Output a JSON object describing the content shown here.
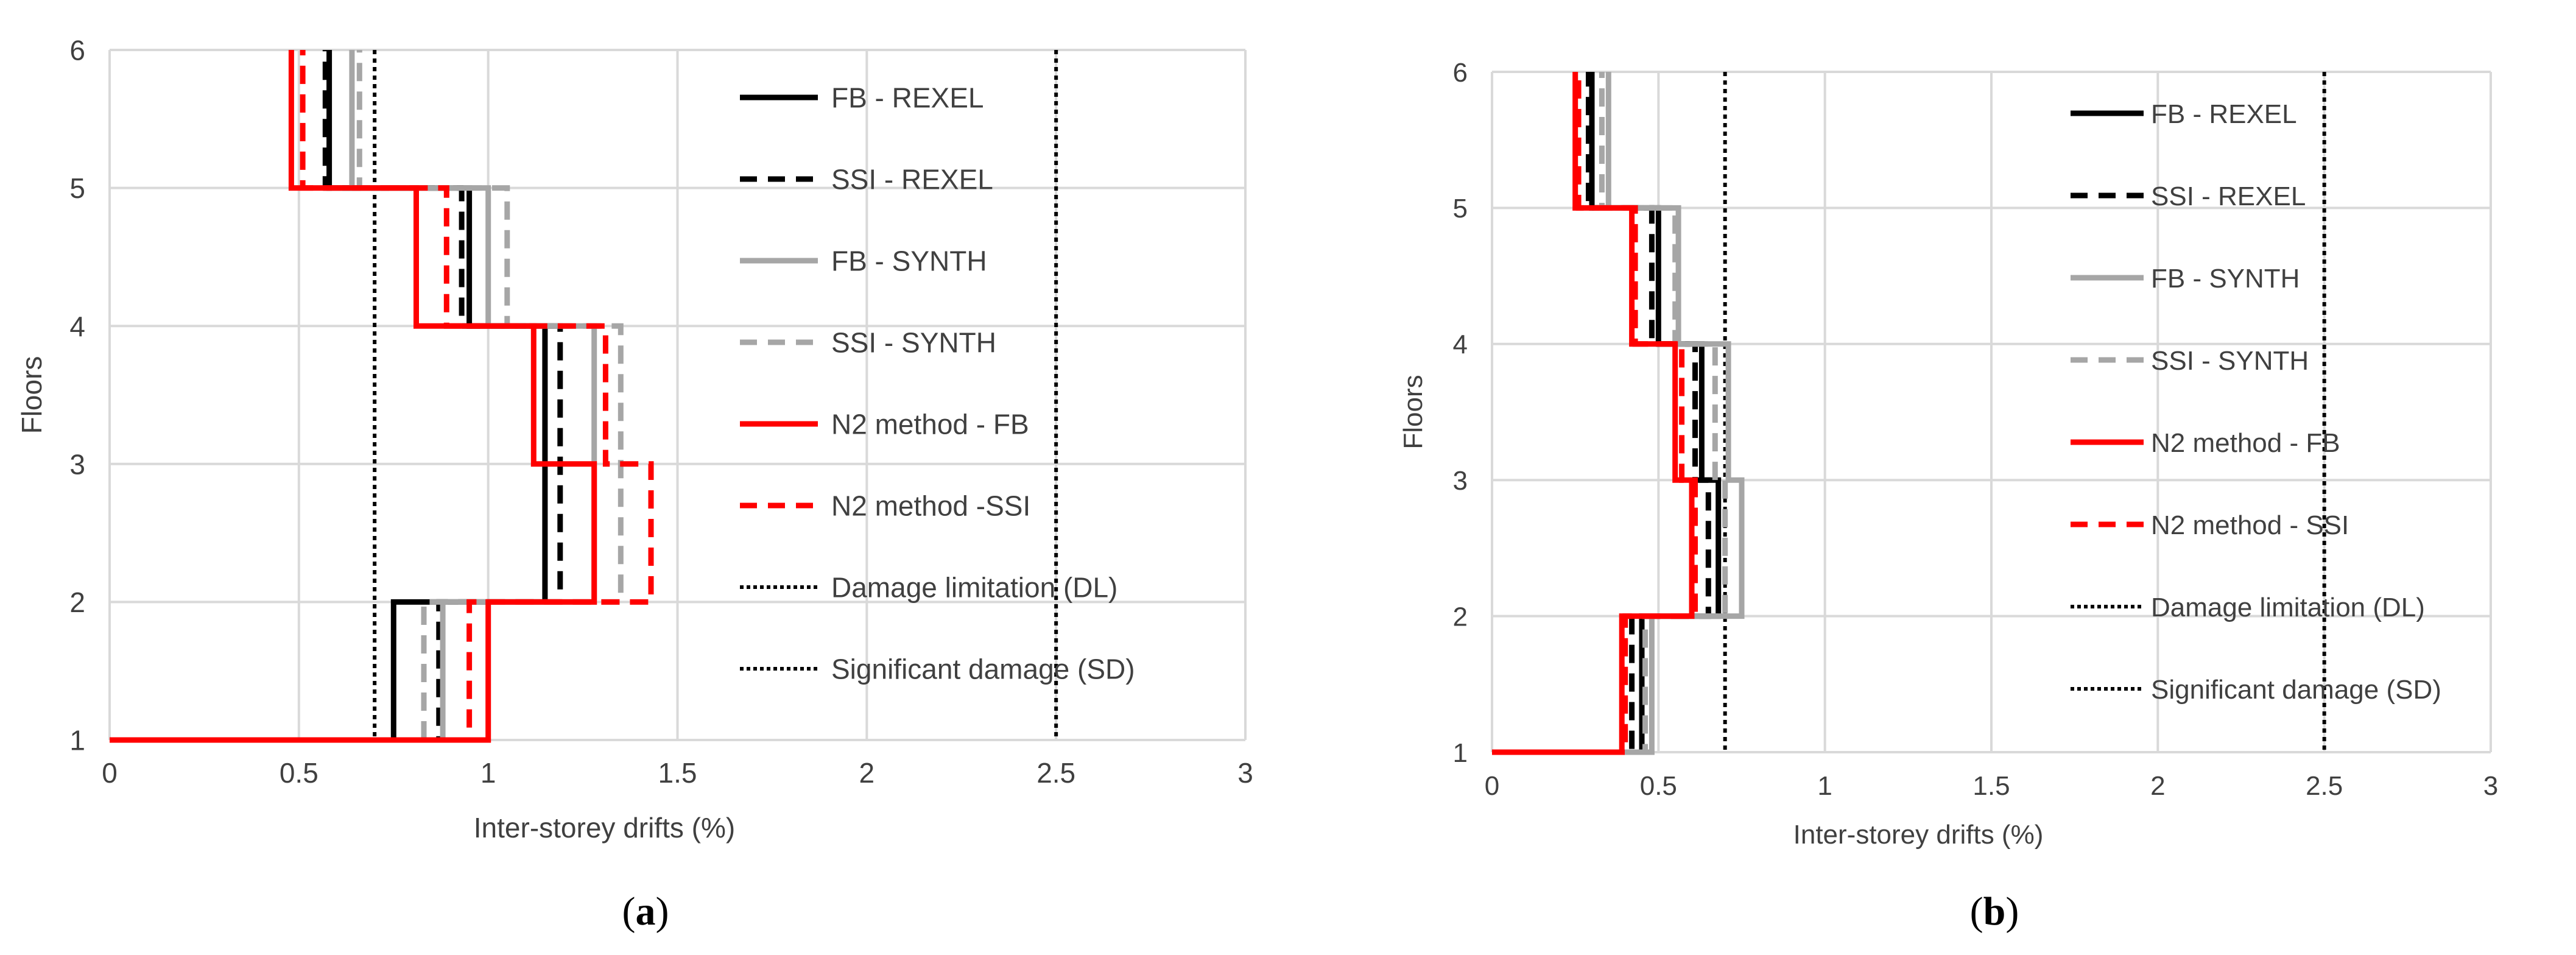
{
  "chart_data": [
    {
      "type": "line",
      "panel_label": "a",
      "xlabel": "Inter-storey drifts (%)",
      "ylabel": "Floors",
      "xlim": [
        0,
        3
      ],
      "ylim": [
        1,
        6
      ],
      "xticks": [
        0,
        0.5,
        1,
        1.5,
        2,
        2.5,
        3
      ],
      "xtick_labels": [
        "0",
        "0.5",
        "1",
        "1.5",
        "2",
        "2.5",
        "3"
      ],
      "yticks": [
        1,
        2,
        3,
        4,
        5,
        6
      ],
      "ytick_labels": [
        "1",
        "2",
        "3",
        "4",
        "5",
        "6"
      ],
      "grid": true,
      "legend_position": "right",
      "series": [
        {
          "name": "FB - REXEL",
          "style": "solid",
          "color": "#000000",
          "drifts": [
            0.75,
            1.15,
            1.15,
            0.95,
            0.58
          ]
        },
        {
          "name": "SSI - REXEL",
          "style": "dashed",
          "color": "#000000",
          "drifts": [
            0.87,
            1.19,
            1.19,
            0.93,
            0.57
          ]
        },
        {
          "name": "FB - SYNTH",
          "style": "solid",
          "color": "#a6a6a6",
          "drifts": [
            0.88,
            1.28,
            1.28,
            1.0,
            0.64
          ]
        },
        {
          "name": "SSI - SYNTH",
          "style": "dashed",
          "color": "#a6a6a6",
          "drifts": [
            0.83,
            1.35,
            1.35,
            1.05,
            0.66
          ]
        },
        {
          "name": "N2 method - FB",
          "style": "solid",
          "color": "#ff0000",
          "drifts": [
            1.0,
            1.28,
            1.12,
            0.81,
            0.48
          ]
        },
        {
          "name": "N2 method -SSI",
          "style": "dashed",
          "color": "#ff0000",
          "drifts": [
            0.95,
            1.43,
            1.31,
            0.89,
            0.51
          ]
        }
      ],
      "reference_lines": [
        {
          "name": "Damage limitation (DL)",
          "x": 0.7,
          "style": "dotted",
          "color": "#000000"
        },
        {
          "name": "Significant damage (SD)",
          "x": 2.5,
          "style": "dotted",
          "color": "#000000"
        }
      ]
    },
    {
      "type": "line",
      "panel_label": "b",
      "xlabel": "Inter-storey drifts (%)",
      "ylabel": "Floors",
      "xlim": [
        0,
        3
      ],
      "ylim": [
        1,
        6
      ],
      "xticks": [
        0,
        0.5,
        1,
        1.5,
        2,
        2.5,
        3
      ],
      "xtick_labels": [
        "0",
        "0.5",
        "1",
        "1.5",
        "2",
        "2.5",
        "3"
      ],
      "yticks": [
        1,
        2,
        3,
        4,
        5,
        6
      ],
      "ytick_labels": [
        "1",
        "2",
        "3",
        "4",
        "5",
        "6"
      ],
      "grid": true,
      "legend_position": "right",
      "series": [
        {
          "name": "FB - REXEL",
          "style": "solid",
          "color": "#000000",
          "drifts": [
            0.45,
            0.68,
            0.63,
            0.5,
            0.3
          ]
        },
        {
          "name": "SSI - REXEL",
          "style": "dashed",
          "color": "#000000",
          "drifts": [
            0.42,
            0.65,
            0.61,
            0.48,
            0.29
          ]
        },
        {
          "name": "FB - SYNTH",
          "style": "solid",
          "color": "#a6a6a6",
          "drifts": [
            0.48,
            0.75,
            0.71,
            0.56,
            0.35
          ]
        },
        {
          "name": "SSI - SYNTH",
          "style": "dashed",
          "color": "#a6a6a6",
          "drifts": [
            0.46,
            0.7,
            0.67,
            0.55,
            0.33
          ]
        },
        {
          "name": "N2 method - FB",
          "style": "solid",
          "color": "#ff0000",
          "drifts": [
            0.39,
            0.6,
            0.55,
            0.42,
            0.25
          ]
        },
        {
          "name": "N2 method - SSI",
          "style": "dashed",
          "color": "#ff0000",
          "drifts": [
            0.4,
            0.61,
            0.57,
            0.43,
            0.26
          ]
        }
      ],
      "reference_lines": [
        {
          "name": "Damage limitation (DL)",
          "x": 0.7,
          "style": "dotted",
          "color": "#000000"
        },
        {
          "name": "Significant damage (SD)",
          "x": 2.5,
          "style": "dotted",
          "color": "#000000"
        }
      ]
    }
  ],
  "panels": [
    {
      "label": "a",
      "prefix": "(",
      "suffix": ")"
    },
    {
      "label": "b",
      "prefix": "(",
      "suffix": ")"
    }
  ]
}
